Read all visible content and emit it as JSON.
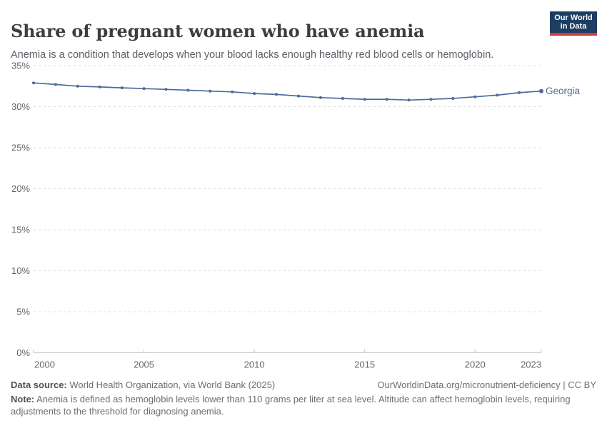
{
  "header": {
    "title": "Share of pregnant women who have anemia",
    "subtitle": "Anemia is a condition that develops when your blood lacks enough healthy red blood cells or hemoglobin.",
    "logo": {
      "line1": "Our World",
      "line2": "in Data",
      "bg_color": "#1d3d63",
      "bar_color": "#ce4037"
    }
  },
  "chart_data": {
    "type": "line",
    "title": "Share of pregnant women who have anemia",
    "x": [
      2000,
      2001,
      2002,
      2003,
      2004,
      2005,
      2006,
      2007,
      2008,
      2009,
      2010,
      2011,
      2012,
      2013,
      2014,
      2015,
      2016,
      2017,
      2018,
      2019,
      2020,
      2021,
      2022,
      2023
    ],
    "series": [
      {
        "name": "Georgia",
        "color": "#4C6A9C",
        "values": [
          32.9,
          32.7,
          32.5,
          32.4,
          32.3,
          32.2,
          32.1,
          32.0,
          31.9,
          31.8,
          31.6,
          31.5,
          31.3,
          31.1,
          31.0,
          30.9,
          30.9,
          30.8,
          30.9,
          31.0,
          31.2,
          31.4,
          31.7,
          31.9
        ]
      }
    ],
    "xlabel": "",
    "ylabel": "",
    "ylim": [
      0,
      35
    ],
    "yticks": [
      0,
      5,
      10,
      15,
      20,
      25,
      30,
      35
    ],
    "ytick_suffix": "%",
    "xticks": [
      2000,
      2005,
      2010,
      2015,
      2020,
      2023
    ],
    "grid": true,
    "gridline_style": "dashed",
    "legend_position": "end-of-line",
    "colors": {
      "grid": "#dedede",
      "axis": "#c8c8c8",
      "tick_label": "#666666"
    }
  },
  "footer": {
    "source_label": "Data source:",
    "source_text": " World Health Organization, via World Bank (2025)",
    "link": "OurWorldinData.org/micronutrient-deficiency | CC BY",
    "note_label": "Note:",
    "note_text": " Anemia is defined as hemoglobin levels lower than 110 grams per liter at sea level. Altitude can affect hemoglobin levels, requiring adjustments to the threshold for diagnosing anemia."
  }
}
